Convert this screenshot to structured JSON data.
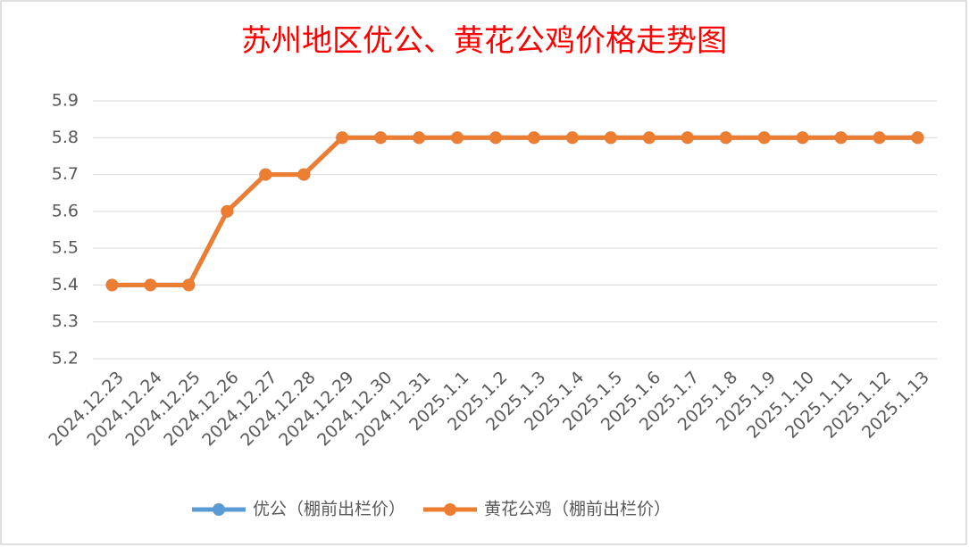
{
  "chart_data": {
    "type": "line",
    "title": "苏州地区优公、黄花公鸡价格走势图",
    "categories": [
      "2024.12.23",
      "2024.12.24",
      "2024.12.25",
      "2024.12.26",
      "2024.12.27",
      "2024.12.28",
      "2024.12.29",
      "2024.12.30",
      "2024.12.31",
      "2025.1.1",
      "2025.1.2",
      "2025.1.3",
      "2025.1.4",
      "2025.1.5",
      "2025.1.6",
      "2025.1.7",
      "2025.1.8",
      "2025.1.9",
      "2025.1.10",
      "2025.1.11",
      "2025.1.12",
      "2025.1.13"
    ],
    "series": [
      {
        "name": "优公（棚前出栏价）",
        "color": "#5b9bd5",
        "values": [
          5.4,
          5.4,
          5.4,
          5.6,
          5.7,
          5.7,
          5.8,
          5.8,
          5.8,
          5.8,
          5.8,
          5.8,
          5.8,
          5.8,
          5.8,
          5.8,
          5.8,
          5.8,
          5.8,
          5.8,
          5.8,
          5.8
        ]
      },
      {
        "name": "黄花公鸡（棚前出栏价）",
        "color": "#ed7d31",
        "values": [
          5.4,
          5.4,
          5.4,
          5.6,
          5.7,
          5.7,
          5.8,
          5.8,
          5.8,
          5.8,
          5.8,
          5.8,
          5.8,
          5.8,
          5.8,
          5.8,
          5.8,
          5.8,
          5.8,
          5.8,
          5.8,
          5.8
        ]
      }
    ],
    "ylim": [
      5.2,
      5.9
    ],
    "yticks": [
      5.2,
      5.3,
      5.4,
      5.5,
      5.6,
      5.7,
      5.8,
      5.9
    ],
    "grid": true,
    "legend": "bottom"
  }
}
